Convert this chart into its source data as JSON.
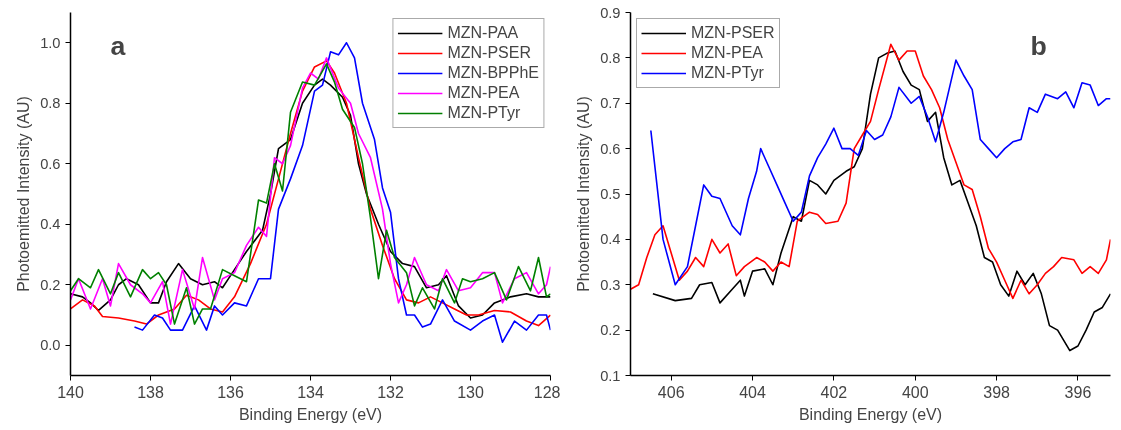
{
  "chart_data": [
    {
      "type": "line",
      "xlabel": "Binding Energy (eV)",
      "ylabel": "Photoemitted Intensity (AU)",
      "annotations": [
        "a"
      ],
      "xlim": [
        140,
        128
      ],
      "ylim": [
        -0.1,
        1.1
      ],
      "xticks": [
        140,
        138,
        136,
        134,
        132,
        130,
        128
      ],
      "yticks": [
        {
          "value": 0,
          "label": "0.0"
        },
        0.2,
        0.4,
        0.6,
        0.8,
        {
          "value": 1,
          "label": "1.0"
        }
      ],
      "grid": false,
      "legend": "top right",
      "line_style": "solid",
      "marker": "none",
      "series": [
        {
          "name": "MZN-PAA",
          "color": "#000000",
          "x": [
            140,
            139.7,
            139.5,
            139.3,
            139.0,
            138.8,
            138.6,
            138.3,
            138.0,
            137.8,
            137.6,
            137.3,
            137.0,
            136.7,
            136.4,
            136.2,
            136.0,
            135.6,
            135.2,
            135.0,
            134.8,
            134.5,
            134.2,
            133.9,
            133.7,
            133.5,
            133.2,
            133.0,
            132.8,
            132.6,
            132.3,
            132.0,
            131.7,
            131.4,
            131.1,
            130.8,
            130.6,
            130.3,
            130.0,
            129.7,
            129.4,
            129.0,
            128.6,
            128.3,
            128
          ],
          "values": [
            0.17,
            0.16,
            0.14,
            0.115,
            0.15,
            0.2,
            0.22,
            0.2,
            0.14,
            0.14,
            0.21,
            0.27,
            0.22,
            0.2,
            0.21,
            0.19,
            0.23,
            0.31,
            0.38,
            0.5,
            0.65,
            0.68,
            0.8,
            0.86,
            0.88,
            0.86,
            0.82,
            0.76,
            0.6,
            0.5,
            0.4,
            0.31,
            0.27,
            0.26,
            0.19,
            0.2,
            0.23,
            0.13,
            0.09,
            0.1,
            0.14,
            0.16,
            0.17,
            0.16,
            0.16
          ]
        },
        {
          "name": "MZN-PSER",
          "color": "#ff0000",
          "x": [
            140,
            139.7,
            139.4,
            139.2,
            138.8,
            138.4,
            138.1,
            137.8,
            137.4,
            137.1,
            136.8,
            136.5,
            136.2,
            135.9,
            135.5,
            135.1,
            134.8,
            134.5,
            134.2,
            133.9,
            133.6,
            133.4,
            133.1,
            132.8,
            132.5,
            132.2,
            131.9,
            131.6,
            131.3,
            131.0,
            130.7,
            130.4,
            130.1,
            129.8,
            129.4,
            129.0,
            128.6,
            128.3,
            128
          ],
          "values": [
            0.12,
            0.15,
            0.13,
            0.095,
            0.09,
            0.08,
            0.07,
            0.1,
            0.12,
            0.165,
            0.15,
            0.12,
            0.11,
            0.16,
            0.27,
            0.4,
            0.55,
            0.7,
            0.84,
            0.92,
            0.94,
            0.9,
            0.8,
            0.62,
            0.45,
            0.33,
            0.22,
            0.15,
            0.14,
            0.16,
            0.14,
            0.12,
            0.1,
            0.1,
            0.115,
            0.11,
            0.08,
            0.065,
            0.1
          ]
        },
        {
          "name": "MZN-BPPhE",
          "color": "#0000ff",
          "x": [
            138.4,
            138.2,
            137.9,
            137.7,
            137.5,
            137.2,
            136.9,
            136.6,
            136.4,
            136.2,
            135.9,
            135.6,
            135.3,
            135.0,
            134.8,
            134.5,
            134.2,
            133.9,
            133.7,
            133.5,
            133.3,
            133.1,
            132.9,
            132.7,
            132.4,
            132.2,
            132.0,
            131.8,
            131.6,
            131.4,
            131.2,
            131.0,
            130.7,
            130.4,
            130.0,
            129.7,
            129.4,
            129.2,
            128.9,
            128.6,
            128.3,
            128.1,
            128
          ],
          "values": [
            0.06,
            0.05,
            0.1,
            0.09,
            0.05,
            0.05,
            0.13,
            0.05,
            0.13,
            0.1,
            0.14,
            0.13,
            0.22,
            0.22,
            0.45,
            0.55,
            0.66,
            0.84,
            0.86,
            0.97,
            0.96,
            1.0,
            0.95,
            0.8,
            0.68,
            0.52,
            0.44,
            0.22,
            0.1,
            0.1,
            0.06,
            0.07,
            0.15,
            0.08,
            0.05,
            0.08,
            0.1,
            0.01,
            0.08,
            0.05,
            0.1,
            0.1,
            0.05
          ]
        },
        {
          "name": "MZN-PEA",
          "color": "#ff00ff",
          "x": [
            140,
            139.8,
            139.5,
            139.2,
            139.0,
            138.8,
            138.5,
            138.2,
            138.0,
            137.7,
            137.5,
            137.2,
            136.9,
            136.7,
            136.4,
            136.2,
            135.9,
            135.6,
            135.3,
            135.1,
            134.9,
            134.7,
            134.5,
            134.2,
            134.0,
            133.8,
            133.6,
            133.3,
            133.0,
            132.8,
            132.5,
            132.2,
            132.0,
            131.8,
            131.6,
            131.4,
            131.1,
            130.8,
            130.6,
            130.3,
            130.0,
            129.7,
            129.4,
            129.2,
            128.9,
            128.6,
            128.3,
            128.1,
            128
          ],
          "values": [
            0.15,
            0.22,
            0.12,
            0.22,
            0.13,
            0.27,
            0.2,
            0.17,
            0.14,
            0.21,
            0.07,
            0.25,
            0.12,
            0.29,
            0.15,
            0.22,
            0.24,
            0.33,
            0.39,
            0.36,
            0.62,
            0.6,
            0.66,
            0.85,
            0.9,
            0.88,
            0.95,
            0.85,
            0.8,
            0.7,
            0.62,
            0.45,
            0.27,
            0.14,
            0.2,
            0.29,
            0.2,
            0.18,
            0.25,
            0.18,
            0.19,
            0.24,
            0.24,
            0.14,
            0.22,
            0.24,
            0.17,
            0.2,
            0.26
          ]
        },
        {
          "name": "MZN-PTyr",
          "color": "#008000",
          "x": [
            140,
            139.8,
            139.5,
            139.3,
            139.0,
            138.8,
            138.5,
            138.2,
            138.0,
            137.8,
            137.6,
            137.4,
            137.1,
            136.9,
            136.7,
            136.5,
            136.2,
            135.9,
            135.6,
            135.3,
            135.1,
            134.9,
            134.7,
            134.5,
            134.2,
            133.9,
            133.6,
            133.4,
            133.2,
            132.9,
            132.7,
            132.5,
            132.3,
            132.1,
            131.9,
            131.6,
            131.4,
            131.2,
            130.9,
            130.7,
            130.4,
            130.2,
            130.0,
            129.7,
            129.4,
            129.1,
            128.8,
            128.5,
            128.3,
            128.1,
            128
          ],
          "values": [
            0.18,
            0.22,
            0.19,
            0.25,
            0.17,
            0.24,
            0.16,
            0.25,
            0.22,
            0.24,
            0.2,
            0.07,
            0.19,
            0.07,
            0.12,
            0.12,
            0.25,
            0.23,
            0.21,
            0.48,
            0.47,
            0.6,
            0.51,
            0.77,
            0.87,
            0.86,
            0.93,
            0.87,
            0.78,
            0.72,
            0.6,
            0.42,
            0.22,
            0.38,
            0.29,
            0.24,
            0.13,
            0.19,
            0.12,
            0.22,
            0.14,
            0.22,
            0.21,
            0.22,
            0.24,
            0.15,
            0.26,
            0.18,
            0.29,
            0.16,
            0.17
          ]
        }
      ]
    },
    {
      "type": "line",
      "xlabel": "Binding Energy (eV)",
      "ylabel": "Photoemitted Intensity (AU)",
      "annotations": [
        "b"
      ],
      "xlim": [
        407,
        395.2
      ],
      "ylim": [
        0.1,
        0.9
      ],
      "xticks": [
        406,
        404,
        402,
        400,
        398,
        396
      ],
      "yticks": [
        0.1,
        0.2,
        0.3,
        0.4,
        0.5,
        0.6,
        0.7,
        0.8,
        0.9
      ],
      "grid": false,
      "legend": "top left",
      "line_style": "solid",
      "marker": "none",
      "series": [
        {
          "name": "MZN-PSER",
          "color": "#000000",
          "x": [
            406.45,
            405.9,
            405.5,
            405.3,
            405.0,
            404.8,
            404.5,
            404.3,
            404.2,
            404.0,
            403.7,
            403.5,
            403.3,
            403.0,
            402.8,
            402.6,
            402.4,
            402.2,
            402.0,
            401.7,
            401.5,
            401.3,
            401.1,
            400.9,
            400.7,
            400.5,
            400.3,
            400.1,
            399.9,
            399.7,
            399.5,
            399.3,
            399.1,
            398.9,
            398.7,
            398.5,
            398.3,
            398.1,
            397.9,
            397.7,
            397.5,
            397.3,
            397.1,
            396.9,
            396.7,
            396.5,
            396.2,
            396.0,
            395.8,
            395.6,
            395.4,
            395.2
          ],
          "values": [
            0.28,
            0.265,
            0.27,
            0.3,
            0.305,
            0.26,
            0.29,
            0.31,
            0.275,
            0.33,
            0.335,
            0.3,
            0.37,
            0.45,
            0.44,
            0.53,
            0.52,
            0.5,
            0.53,
            0.55,
            0.56,
            0.6,
            0.72,
            0.8,
            0.81,
            0.815,
            0.77,
            0.74,
            0.73,
            0.66,
            0.68,
            0.58,
            0.52,
            0.53,
            0.48,
            0.43,
            0.36,
            0.35,
            0.3,
            0.275,
            0.33,
            0.3,
            0.325,
            0.28,
            0.21,
            0.2,
            0.155,
            0.165,
            0.2,
            0.24,
            0.25,
            0.28
          ]
        },
        {
          "name": "MZN-PEA",
          "color": "#ff0000",
          "x": [
            407,
            406.8,
            406.6,
            406.4,
            406.2,
            406.0,
            405.8,
            405.6,
            405.4,
            405.2,
            405.0,
            404.8,
            404.6,
            404.4,
            404.2,
            403.9,
            403.7,
            403.5,
            403.3,
            403.1,
            402.9,
            402.6,
            402.4,
            402.2,
            401.9,
            401.7,
            401.5,
            401.3,
            401.1,
            400.9,
            400.6,
            400.4,
            400.2,
            400.0,
            399.8,
            399.6,
            399.4,
            399.2,
            399.0,
            398.8,
            398.6,
            398.4,
            398.2,
            398.0,
            397.8,
            397.6,
            397.4,
            397.2,
            397.0,
            396.8,
            396.6,
            396.4,
            396.1,
            395.9,
            395.7,
            395.5,
            395.3,
            395.2
          ],
          "values": [
            0.29,
            0.3,
            0.36,
            0.41,
            0.43,
            0.37,
            0.31,
            0.33,
            0.36,
            0.34,
            0.4,
            0.37,
            0.39,
            0.32,
            0.34,
            0.36,
            0.35,
            0.33,
            0.35,
            0.34,
            0.44,
            0.46,
            0.455,
            0.435,
            0.44,
            0.48,
            0.6,
            0.63,
            0.66,
            0.73,
            0.83,
            0.795,
            0.815,
            0.815,
            0.76,
            0.73,
            0.69,
            0.62,
            0.57,
            0.52,
            0.51,
            0.45,
            0.38,
            0.35,
            0.31,
            0.27,
            0.31,
            0.28,
            0.3,
            0.325,
            0.34,
            0.36,
            0.355,
            0.325,
            0.34,
            0.325,
            0.355,
            0.4
          ]
        },
        {
          "name": "MZN-PTyr",
          "color": "#0000ff",
          "x": [
            406.5,
            406.2,
            405.9,
            405.6,
            405.4,
            405.2,
            405.0,
            404.8,
            404.5,
            404.3,
            404.1,
            403.9,
            403.8,
            403.6,
            403.4,
            403.2,
            403.0,
            402.8,
            402.6,
            402.4,
            402.2,
            402.0,
            401.8,
            401.6,
            401.4,
            401.2,
            401.0,
            400.8,
            400.6,
            400.4,
            400.1,
            399.9,
            399.7,
            399.5,
            399.3,
            399.0,
            398.8,
            398.6,
            398.4,
            398.2,
            398.0,
            397.8,
            397.6,
            397.4,
            397.2,
            397.0,
            396.8,
            396.5,
            396.3,
            396.1,
            395.9,
            395.7,
            395.5,
            395.3,
            395.2
          ],
          "values": [
            0.64,
            0.4,
            0.3,
            0.34,
            0.43,
            0.52,
            0.495,
            0.49,
            0.43,
            0.41,
            0.49,
            0.55,
            0.6,
            0.56,
            0.52,
            0.48,
            0.44,
            0.46,
            0.54,
            0.58,
            0.61,
            0.645,
            0.6,
            0.6,
            0.585,
            0.64,
            0.62,
            0.63,
            0.67,
            0.735,
            0.7,
            0.715,
            0.67,
            0.615,
            0.68,
            0.795,
            0.76,
            0.73,
            0.62,
            0.6,
            0.58,
            0.6,
            0.615,
            0.62,
            0.69,
            0.68,
            0.72,
            0.71,
            0.725,
            0.69,
            0.745,
            0.74,
            0.695,
            0.71,
            0.71
          ]
        }
      ]
    }
  ]
}
